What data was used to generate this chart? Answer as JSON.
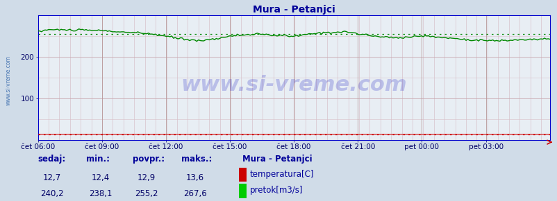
{
  "title": "Mura - Petanjci",
  "title_color": "#000099",
  "bg_color": "#d0dce8",
  "plot_bg_color": "#e8eef4",
  "xlabel_ticks": [
    "čet 06:00",
    "čet 09:00",
    "čet 12:00",
    "čet 15:00",
    "čet 18:00",
    "čet 21:00",
    "pet 00:00",
    "pet 03:00"
  ],
  "yticks": [
    100,
    200
  ],
  "ylim": [
    0,
    300
  ],
  "flow_color": "#008800",
  "flow_avg": 255.2,
  "temp_color": "#cc0000",
  "temp_avg": 12.9,
  "legend_title": "Mura - Petanjci",
  "legend_items": [
    {
      "label": "temperatura[C]",
      "color": "#cc0000"
    },
    {
      "label": "pretok[m3/s]",
      "color": "#00cc00"
    }
  ],
  "stats_headers": [
    "sedaj:",
    "min.:",
    "povpr.:",
    "maks.:"
  ],
  "stats_temp": [
    "12,7",
    "12,4",
    "12,9",
    "13,6"
  ],
  "stats_flow": [
    "240,2",
    "238,1",
    "255,2",
    "267,6"
  ],
  "watermark": "www.si-vreme.com",
  "axis_color": "#0000cc",
  "tick_color": "#000066",
  "tick_fontsize": 7.5,
  "stat_fontsize": 8.5
}
